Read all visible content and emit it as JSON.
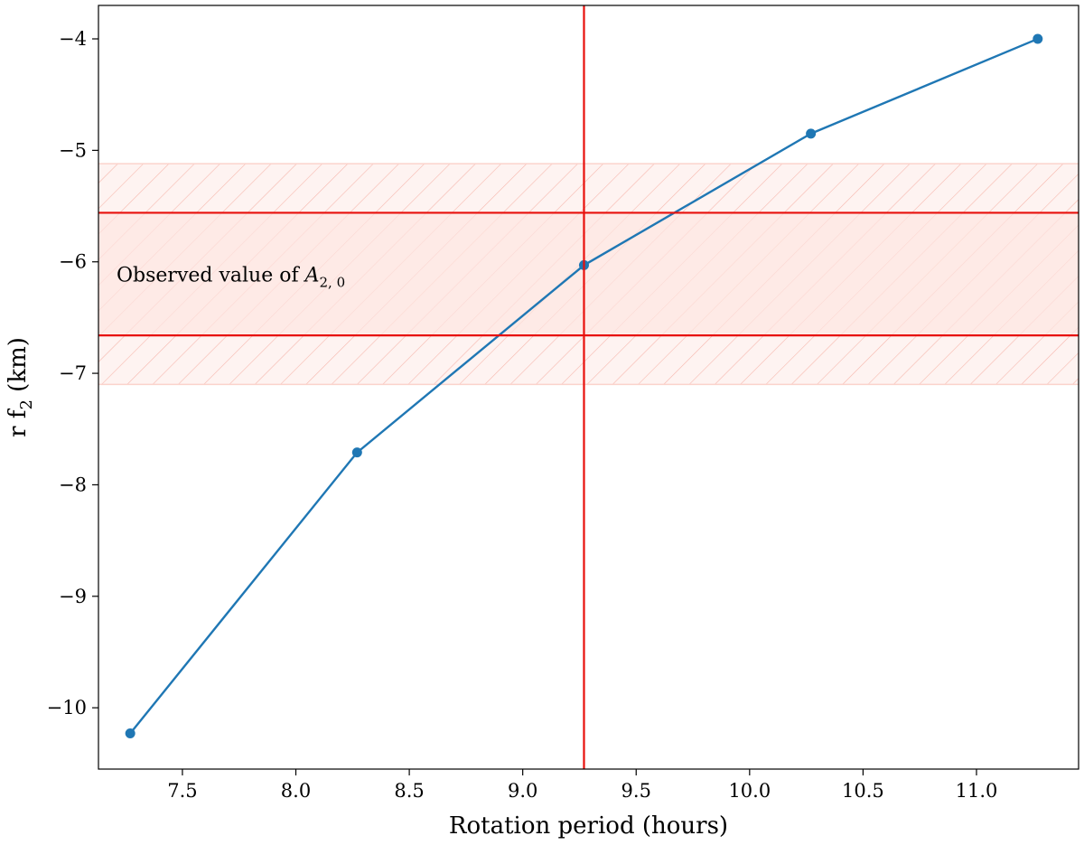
{
  "chart_data": {
    "type": "line",
    "xlabel": "Rotation period (hours)",
    "ylabel_main": "r f",
    "ylabel_sub": "2",
    "ylabel_unit": " (km)",
    "xlim": [
      7.13,
      11.45
    ],
    "ylim": [
      -10.55,
      -3.7
    ],
    "xticks": [
      7.5,
      8.0,
      8.5,
      9.0,
      9.5,
      10.0,
      10.5,
      11.0
    ],
    "xtick_labels": [
      "7.5",
      "8.0",
      "8.5",
      "9.0",
      "9.5",
      "10.0",
      "10.5",
      "11.0"
    ],
    "yticks": [
      -10,
      -9,
      -8,
      -7,
      -6,
      -5,
      -4
    ],
    "ytick_labels": [
      "−10",
      "−9",
      "−8",
      "−7",
      "−6",
      "−5",
      "−4"
    ],
    "grid": false,
    "series": [
      {
        "color": "#1f77b4",
        "marker": "circle",
        "x": [
          7.27,
          8.27,
          9.27,
          10.27,
          11.27
        ],
        "y": [
          -10.23,
          -7.71,
          -6.03,
          -4.85,
          -4.0
        ]
      }
    ],
    "observed_band": {
      "outer": [
        -7.1,
        -5.12
      ],
      "inner": [
        -6.66,
        -5.56
      ],
      "color": "#e41a1c",
      "hatch": "diagonal",
      "label_main": "Observed value of ",
      "label_symbol": "A",
      "label_sub": "2, 0"
    },
    "vline_x": 9.27,
    "line_color": "#e8100c"
  }
}
